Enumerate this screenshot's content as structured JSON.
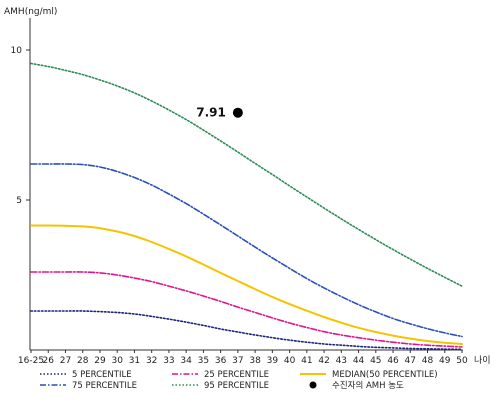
{
  "chart_data": {
    "type": "line",
    "ylabel": "AMH(ng/ml)",
    "xlabel": "나이",
    "ylim": [
      0,
      10
    ],
    "y_ticks": [
      5,
      10
    ],
    "categories": [
      "16-25",
      "26",
      "27",
      "28",
      "29",
      "30",
      "31",
      "32",
      "33",
      "34",
      "35",
      "36",
      "37",
      "38",
      "39",
      "40",
      "41",
      "42",
      "43",
      "44",
      "45",
      "46",
      "47",
      "48",
      "49",
      "50"
    ],
    "series": [
      {
        "name": "5 PERCENTILE",
        "color": "#1a237e",
        "dash": "dotted",
        "values": [
          1.3,
          1.3,
          1.3,
          1.3,
          1.28,
          1.25,
          1.2,
          1.12,
          1.03,
          0.93,
          0.82,
          0.7,
          0.6,
          0.5,
          0.41,
          0.33,
          0.26,
          0.2,
          0.16,
          0.12,
          0.09,
          0.07,
          0.05,
          0.04,
          0.03,
          0.02
        ]
      },
      {
        "name": "25 PERCENTILE",
        "color": "#e0148c",
        "dash": "dashdot",
        "values": [
          2.6,
          2.6,
          2.6,
          2.6,
          2.57,
          2.5,
          2.4,
          2.28,
          2.13,
          1.97,
          1.8,
          1.62,
          1.43,
          1.25,
          1.07,
          0.9,
          0.75,
          0.61,
          0.5,
          0.41,
          0.33,
          0.26,
          0.2,
          0.16,
          0.13,
          0.1
        ]
      },
      {
        "name": "MEDIAN(50 PERCENTILE)",
        "color": "#f5c400",
        "dash": "solid",
        "values": [
          4.15,
          4.15,
          4.14,
          4.12,
          4.06,
          3.95,
          3.8,
          3.6,
          3.37,
          3.12,
          2.85,
          2.57,
          2.3,
          2.03,
          1.77,
          1.53,
          1.31,
          1.1,
          0.91,
          0.74,
          0.6,
          0.48,
          0.38,
          0.3,
          0.24,
          0.2
        ]
      },
      {
        "name": "75 PERCENTILE",
        "color": "#2b4fb8",
        "dash": "dashdot",
        "values": [
          6.2,
          6.2,
          6.2,
          6.18,
          6.1,
          5.95,
          5.75,
          5.5,
          5.2,
          4.88,
          4.53,
          4.17,
          3.8,
          3.43,
          3.07,
          2.72,
          2.38,
          2.07,
          1.78,
          1.51,
          1.27,
          1.05,
          0.87,
          0.71,
          0.57,
          0.45
        ]
      },
      {
        "name": "95 PERCENTILE",
        "color": "#2e8b57",
        "dash": "dotted",
        "values": [
          9.55,
          9.45,
          9.32,
          9.18,
          9.0,
          8.8,
          8.57,
          8.3,
          8.0,
          7.68,
          7.33,
          6.97,
          6.6,
          6.22,
          5.85,
          5.47,
          5.1,
          4.73,
          4.37,
          4.02,
          3.68,
          3.35,
          3.03,
          2.72,
          2.42,
          2.13
        ]
      }
    ],
    "marker": {
      "category": "37",
      "value": 7.91,
      "label": "7.91",
      "legend": "수진자의 AMH 농도"
    },
    "legend_position": "bottom",
    "grid": false
  }
}
